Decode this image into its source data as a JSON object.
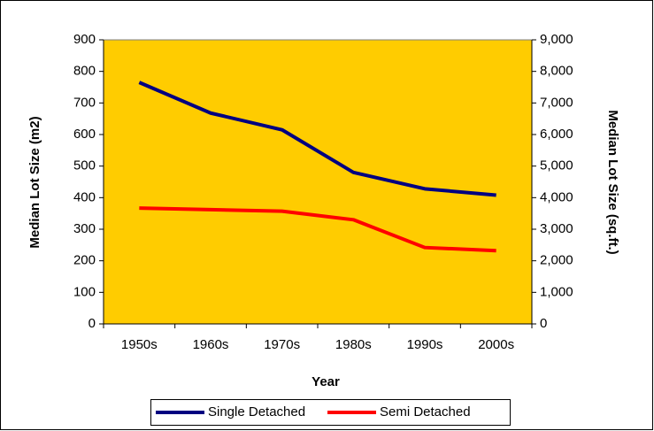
{
  "chart_data": {
    "type": "line",
    "categories": [
      "1950s",
      "1960s",
      "1970s",
      "1980s",
      "1990s",
      "2000s"
    ],
    "series": [
      {
        "name": "Single Detached",
        "color": "#000080",
        "values": [
          765,
          668,
          615,
          480,
          428,
          408
        ]
      },
      {
        "name": "Semi Detached",
        "color": "#ff0000",
        "values": [
          367,
          362,
          357,
          330,
          242,
          232
        ]
      }
    ],
    "xlabel": "Year",
    "ylabel": "Median Lot Size (m2)",
    "y2label": "Median Lot Size (sq.ft.)",
    "ylim": [
      0,
      900
    ],
    "yticks": [
      0,
      100,
      200,
      300,
      400,
      500,
      600,
      700,
      800,
      900
    ],
    "y2lim": [
      0,
      9000
    ],
    "y2ticks": [
      0,
      {
        "value": 1000,
        "label": "1,000"
      },
      {
        "value": 2000,
        "label": "2,000"
      },
      {
        "value": 3000,
        "label": "3,000"
      },
      {
        "value": 4000,
        "label": "4,000"
      },
      {
        "value": 5000,
        "label": "5,000"
      },
      {
        "value": 6000,
        "label": "6,000"
      },
      {
        "value": 7000,
        "label": "7,000"
      },
      {
        "value": 8000,
        "label": "8,000"
      },
      {
        "value": 9000,
        "label": "9,000"
      }
    ],
    "plot_background": "#ffcc00",
    "legend": "bottom"
  }
}
